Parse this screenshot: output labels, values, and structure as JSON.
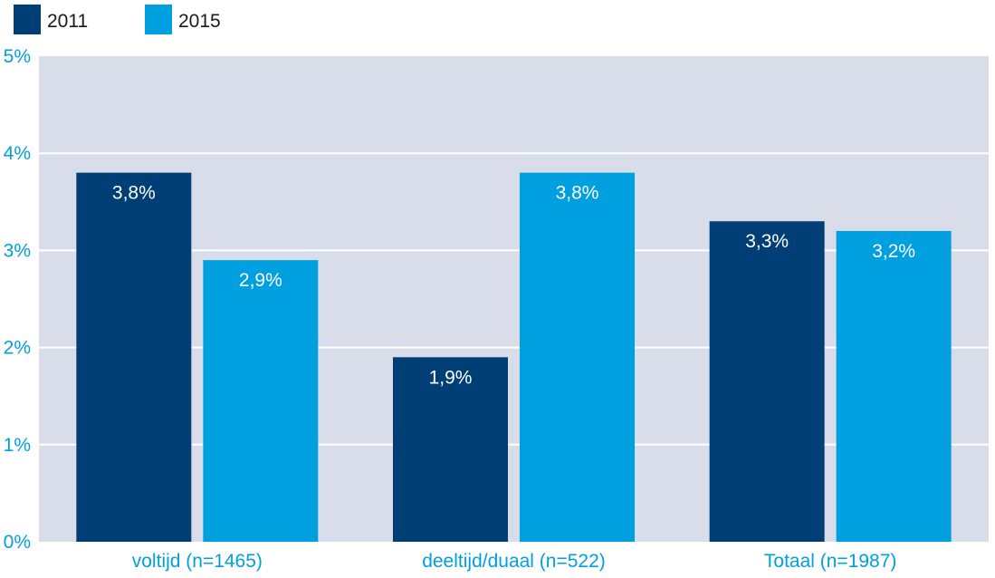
{
  "chart_data": {
    "type": "bar",
    "title": "",
    "xlabel": "",
    "ylabel": "",
    "categories": [
      "voltijd (n=1465)",
      "deeltijd/duaal (n=522)",
      "Totaal (n=1987)"
    ],
    "series": [
      {
        "name": "2011",
        "color": "#003f76",
        "values": [
          3.8,
          1.9,
          3.3
        ],
        "labels": [
          "3,8%",
          "1,9%",
          "3,3%"
        ]
      },
      {
        "name": "2015",
        "color": "#00a0e0",
        "values": [
          2.9,
          3.8,
          3.2
        ],
        "labels": [
          "2,9%",
          "3,8%",
          "3,2%"
        ]
      }
    ],
    "ylim": [
      0,
      5
    ],
    "yticks": [
      0,
      1,
      2,
      3,
      4,
      5
    ],
    "ytick_labels": [
      "0%",
      "1%",
      "2%",
      "3%",
      "4%",
      "5%"
    ],
    "grid": true,
    "legend_position": "top-left",
    "colors": {
      "plot_background": "#d9dde9",
      "gridline": "#ffffff",
      "tick_label": "#00a0e0",
      "category_label": "#00a0e0",
      "value_label": "#ffffff"
    }
  }
}
